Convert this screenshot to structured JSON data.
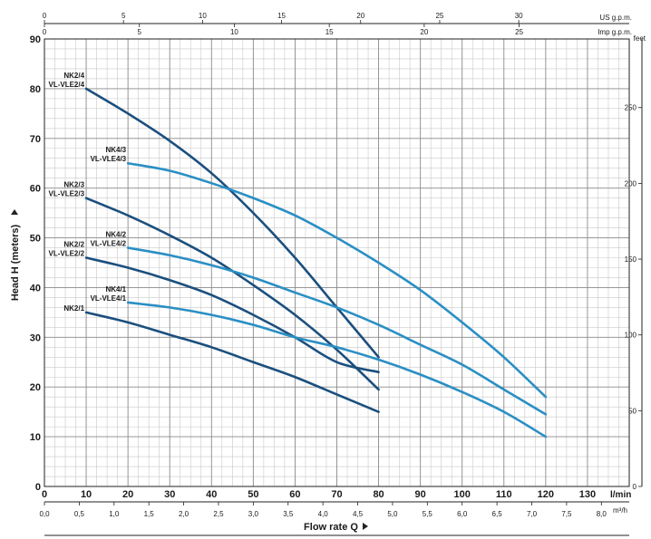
{
  "chart_data": {
    "type": "line",
    "title": "",
    "xlabel": "Flow rate Q",
    "ylabel": "Head H (meters)",
    "x_unit": "l/min",
    "xlim": [
      0,
      140
    ],
    "ylim": [
      0,
      90
    ],
    "x_ticks": [
      0,
      10,
      20,
      30,
      40,
      50,
      60,
      70,
      80,
      90,
      100,
      110,
      120,
      130
    ],
    "y_ticks": [
      0,
      10,
      20,
      30,
      40,
      50,
      60,
      70,
      80,
      90
    ],
    "grid": true,
    "secondary_axes": {
      "top_us_gpm": {
        "label": "US g.p.m.",
        "ticks": [
          0,
          5,
          10,
          15,
          20,
          25,
          30
        ]
      },
      "top_imp_gpm": {
        "label": "Imp g.p.m.",
        "ticks": [
          0,
          5,
          10,
          15,
          20,
          25
        ]
      },
      "bottom_m3h": {
        "label": "m³/h",
        "ticks": [
          "0,0",
          "0,5",
          "1,0",
          "1,5",
          "2,0",
          "2,5",
          "3,0",
          "3,5",
          "4,0",
          "4,5",
          "5,0",
          "5,5",
          "6,0",
          "6,5",
          "7,0",
          "7,5",
          "8,0"
        ]
      },
      "right_feet": {
        "label": "feet",
        "ticks": [
          0,
          50,
          100,
          150,
          200,
          250
        ]
      }
    },
    "series": [
      {
        "name": "NK2/4 VL-VLE2/4",
        "label_lines": [
          "NK2/4",
          "VL-VLE2/4"
        ],
        "color": "#1b4f7e",
        "x": [
          10,
          20,
          30,
          40,
          50,
          60,
          70,
          80
        ],
        "y": [
          80,
          75,
          69.5,
          63,
          55,
          46,
          36,
          26
        ]
      },
      {
        "name": "NK4/3 VL-VLE4/3",
        "label_lines": [
          "NK4/3",
          "VL-VLE4/3"
        ],
        "color": "#2a8fc4",
        "x": [
          20,
          30,
          40,
          50,
          60,
          70,
          80,
          90,
          100,
          110,
          120
        ],
        "y": [
          65,
          63.5,
          61,
          58,
          54.5,
          50,
          45,
          39.5,
          33,
          26,
          18
        ]
      },
      {
        "name": "NK2/3 VL-VLE2/3",
        "label_lines": [
          "NK2/3",
          "VL-VLE2/3"
        ],
        "color": "#1b4f7e",
        "x": [
          10,
          20,
          30,
          40,
          50,
          60,
          70,
          80
        ],
        "y": [
          58,
          54.5,
          50.5,
          46,
          40.5,
          34.5,
          27.5,
          19.5
        ]
      },
      {
        "name": "NK4/2 VL-VLE4/2",
        "label_lines": [
          "NK4/2",
          "VL-VLE4/2"
        ],
        "color": "#2a8fc4",
        "x": [
          20,
          30,
          40,
          50,
          60,
          70,
          80,
          90,
          100,
          110,
          120
        ],
        "y": [
          48,
          46.5,
          44.5,
          42,
          39,
          36,
          32.5,
          28.5,
          24.5,
          19.5,
          14.5
        ]
      },
      {
        "name": "NK2/2 VL-VLE2/2",
        "label_lines": [
          "NK2/2",
          "VL-VLE2/2"
        ],
        "color": "#1b4f7e",
        "x": [
          10,
          20,
          30,
          40,
          50,
          60,
          70,
          80
        ],
        "y": [
          46,
          44,
          41.5,
          38.5,
          34.5,
          30,
          25,
          23
        ]
      },
      {
        "name": "NK4/1 VL-VLE4/1",
        "label_lines": [
          "NK4/1",
          "VL-VLE4/1"
        ],
        "color": "#2a8fc4",
        "x": [
          20,
          30,
          40,
          50,
          60,
          70,
          80,
          90,
          100,
          110,
          120
        ],
        "y": [
          37,
          36,
          34.5,
          32.5,
          30,
          28,
          25.5,
          22.5,
          19,
          15,
          10
        ]
      },
      {
        "name": "NK2/1",
        "label_lines": [
          "NK2/1"
        ],
        "color": "#1b4f7e",
        "x": [
          10,
          20,
          30,
          40,
          50,
          60,
          70,
          80
        ],
        "y": [
          35,
          33,
          30.5,
          28,
          25,
          22,
          18.5,
          15
        ]
      }
    ]
  }
}
